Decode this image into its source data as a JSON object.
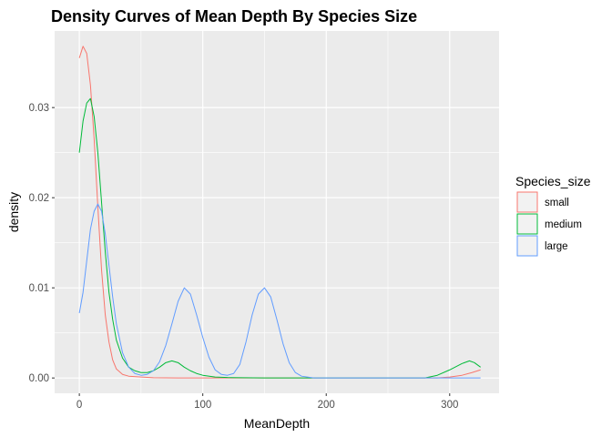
{
  "chart_data": {
    "type": "line",
    "title": "Density Curves of Mean Depth By Species Size",
    "xlabel": "MeanDepth",
    "ylabel": "density",
    "xlim": [
      -20,
      340
    ],
    "ylim": [
      -0.0017,
      0.0385
    ],
    "x_ticks": [
      0,
      100,
      200,
      300
    ],
    "y_ticks": [
      0.0,
      0.01,
      0.02,
      0.03
    ],
    "y_tick_labels": [
      "0.00",
      "0.01",
      "0.02",
      "0.03"
    ],
    "grid": true,
    "legend": {
      "title": "Species_size",
      "position": "right"
    },
    "series": [
      {
        "name": "small",
        "color": "#F8766D",
        "points": [
          [
            0,
            0.0355
          ],
          [
            3,
            0.0368
          ],
          [
            6,
            0.036
          ],
          [
            9,
            0.0325
          ],
          [
            12,
            0.0265
          ],
          [
            15,
            0.019
          ],
          [
            18,
            0.012
          ],
          [
            21,
            0.007
          ],
          [
            24,
            0.004
          ],
          [
            27,
            0.002
          ],
          [
            30,
            0.001
          ],
          [
            35,
            0.0004
          ],
          [
            40,
            0.0002
          ],
          [
            50,
            0.0001
          ],
          [
            60,
            3e-05
          ],
          [
            80,
            0.0
          ],
          [
            150,
            0.0
          ],
          [
            250,
            0.0
          ],
          [
            290,
            0.0
          ],
          [
            300,
            0.0001
          ],
          [
            310,
            0.0003
          ],
          [
            318,
            0.0006
          ],
          [
            325,
            0.0009
          ]
        ]
      },
      {
        "name": "medium",
        "color": "#00BA38",
        "points": [
          [
            0,
            0.025
          ],
          [
            3,
            0.0285
          ],
          [
            6,
            0.0305
          ],
          [
            9,
            0.031
          ],
          [
            12,
            0.029
          ],
          [
            15,
            0.025
          ],
          [
            18,
            0.0195
          ],
          [
            21,
            0.014
          ],
          [
            24,
            0.0095
          ],
          [
            27,
            0.0065
          ],
          [
            30,
            0.0042
          ],
          [
            35,
            0.0022
          ],
          [
            40,
            0.0012
          ],
          [
            45,
            0.0008
          ],
          [
            50,
            0.0006
          ],
          [
            55,
            0.0006
          ],
          [
            60,
            0.0008
          ],
          [
            65,
            0.0012
          ],
          [
            70,
            0.0017
          ],
          [
            75,
            0.0019
          ],
          [
            80,
            0.0017
          ],
          [
            85,
            0.0012
          ],
          [
            90,
            0.0008
          ],
          [
            95,
            0.0005
          ],
          [
            100,
            0.0003
          ],
          [
            110,
            0.0001
          ],
          [
            120,
            5e-05
          ],
          [
            150,
            0.0
          ],
          [
            200,
            0.0
          ],
          [
            280,
            0.0
          ],
          [
            290,
            0.0003
          ],
          [
            300,
            0.0009
          ],
          [
            310,
            0.0016
          ],
          [
            316,
            0.0019
          ],
          [
            320,
            0.0017
          ],
          [
            325,
            0.0012
          ]
        ]
      },
      {
        "name": "large",
        "color": "#619CFF",
        "points": [
          [
            0,
            0.0072
          ],
          [
            3,
            0.0095
          ],
          [
            6,
            0.013
          ],
          [
            9,
            0.0165
          ],
          [
            12,
            0.0185
          ],
          [
            15,
            0.0193
          ],
          [
            18,
            0.0185
          ],
          [
            21,
            0.016
          ],
          [
            24,
            0.0125
          ],
          [
            27,
            0.009
          ],
          [
            30,
            0.006
          ],
          [
            35,
            0.0028
          ],
          [
            40,
            0.0012
          ],
          [
            45,
            0.0005
          ],
          [
            50,
            0.0003
          ],
          [
            55,
            0.0004
          ],
          [
            60,
            0.0008
          ],
          [
            65,
            0.0018
          ],
          [
            70,
            0.0036
          ],
          [
            75,
            0.006
          ],
          [
            80,
            0.0085
          ],
          [
            85,
            0.01
          ],
          [
            90,
            0.0093
          ],
          [
            95,
            0.007
          ],
          [
            100,
            0.0045
          ],
          [
            105,
            0.0023
          ],
          [
            110,
            0.0009
          ],
          [
            115,
            0.0004
          ],
          [
            120,
            0.0003
          ],
          [
            125,
            0.0005
          ],
          [
            130,
            0.0015
          ],
          [
            135,
            0.004
          ],
          [
            140,
            0.007
          ],
          [
            145,
            0.0093
          ],
          [
            150,
            0.01
          ],
          [
            155,
            0.009
          ],
          [
            160,
            0.0065
          ],
          [
            165,
            0.0038
          ],
          [
            170,
            0.0017
          ],
          [
            175,
            0.0006
          ],
          [
            180,
            0.0002
          ],
          [
            190,
            0.0
          ],
          [
            250,
            0.0
          ],
          [
            325,
            0.0
          ]
        ]
      }
    ]
  }
}
